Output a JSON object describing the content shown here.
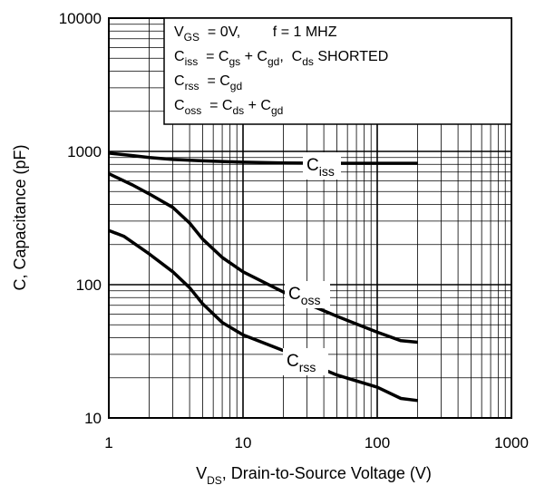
{
  "chart_data": {
    "type": "line",
    "xscale": "log",
    "yscale": "log",
    "xlim": [
      1,
      1000
    ],
    "ylim": [
      10,
      10000
    ],
    "x_ticks": [
      "1",
      "10",
      "100",
      "1000"
    ],
    "y_ticks": [
      "10",
      "100",
      "1000",
      "10000"
    ],
    "xlabel": {
      "main": "V",
      "sub": "DS",
      "rest": ", Drain-to-Source Voltage (V)"
    },
    "ylabel": "C, Capacitance (pF)",
    "grid": true,
    "legend_box": {
      "position": "top-right",
      "lines": [
        {
          "parts": [
            [
              "V",
              ""
            ],
            [
              "GS",
              "sub"
            ],
            [
              "  = 0V,        f = 1 MHZ",
              ""
            ]
          ]
        },
        {
          "parts": [
            [
              "C",
              ""
            ],
            [
              "iss",
              "sub"
            ],
            [
              "  = C",
              ""
            ],
            [
              "gs",
              "sub"
            ],
            [
              " + C",
              ""
            ],
            [
              "gd",
              "sub"
            ],
            [
              ",  C",
              ""
            ],
            [
              "ds",
              "sub"
            ],
            [
              " SHORTED",
              ""
            ]
          ]
        },
        {
          "parts": [
            [
              "C",
              ""
            ],
            [
              "rss",
              "sub"
            ],
            [
              "  = C",
              ""
            ],
            [
              "gd",
              "sub"
            ]
          ]
        },
        {
          "parts": [
            [
              "C",
              ""
            ],
            [
              "oss",
              "sub"
            ],
            [
              "  = C",
              ""
            ],
            [
              "ds",
              "sub"
            ],
            [
              " + C",
              ""
            ],
            [
              "gd",
              "sub"
            ]
          ]
        }
      ]
    },
    "series": [
      {
        "name": "Ciss",
        "label_main": "C",
        "label_sub": "iss",
        "x": [
          1,
          1.5,
          2,
          3,
          5,
          10,
          20,
          50,
          100,
          200
        ],
        "y": [
          970,
          930,
          900,
          870,
          850,
          830,
          820,
          815,
          815,
          815
        ]
      },
      {
        "name": "Coss",
        "label_main": "C",
        "label_sub": "oss",
        "x": [
          1,
          1.5,
          2,
          3,
          4,
          5,
          7,
          10,
          20,
          30,
          50,
          100,
          150,
          200
        ],
        "y": [
          680,
          560,
          480,
          380,
          290,
          220,
          160,
          125,
          88,
          72,
          58,
          44,
          38,
          37
        ]
      },
      {
        "name": "Crss",
        "label_main": "C",
        "label_sub": "rss",
        "x": [
          1,
          1.3,
          2,
          3,
          4,
          5,
          7,
          10,
          20,
          30,
          50,
          100,
          150,
          200
        ],
        "y": [
          255,
          230,
          170,
          125,
          95,
          72,
          52,
          42,
          32,
          26,
          21,
          17,
          14,
          13.5
        ]
      }
    ]
  }
}
